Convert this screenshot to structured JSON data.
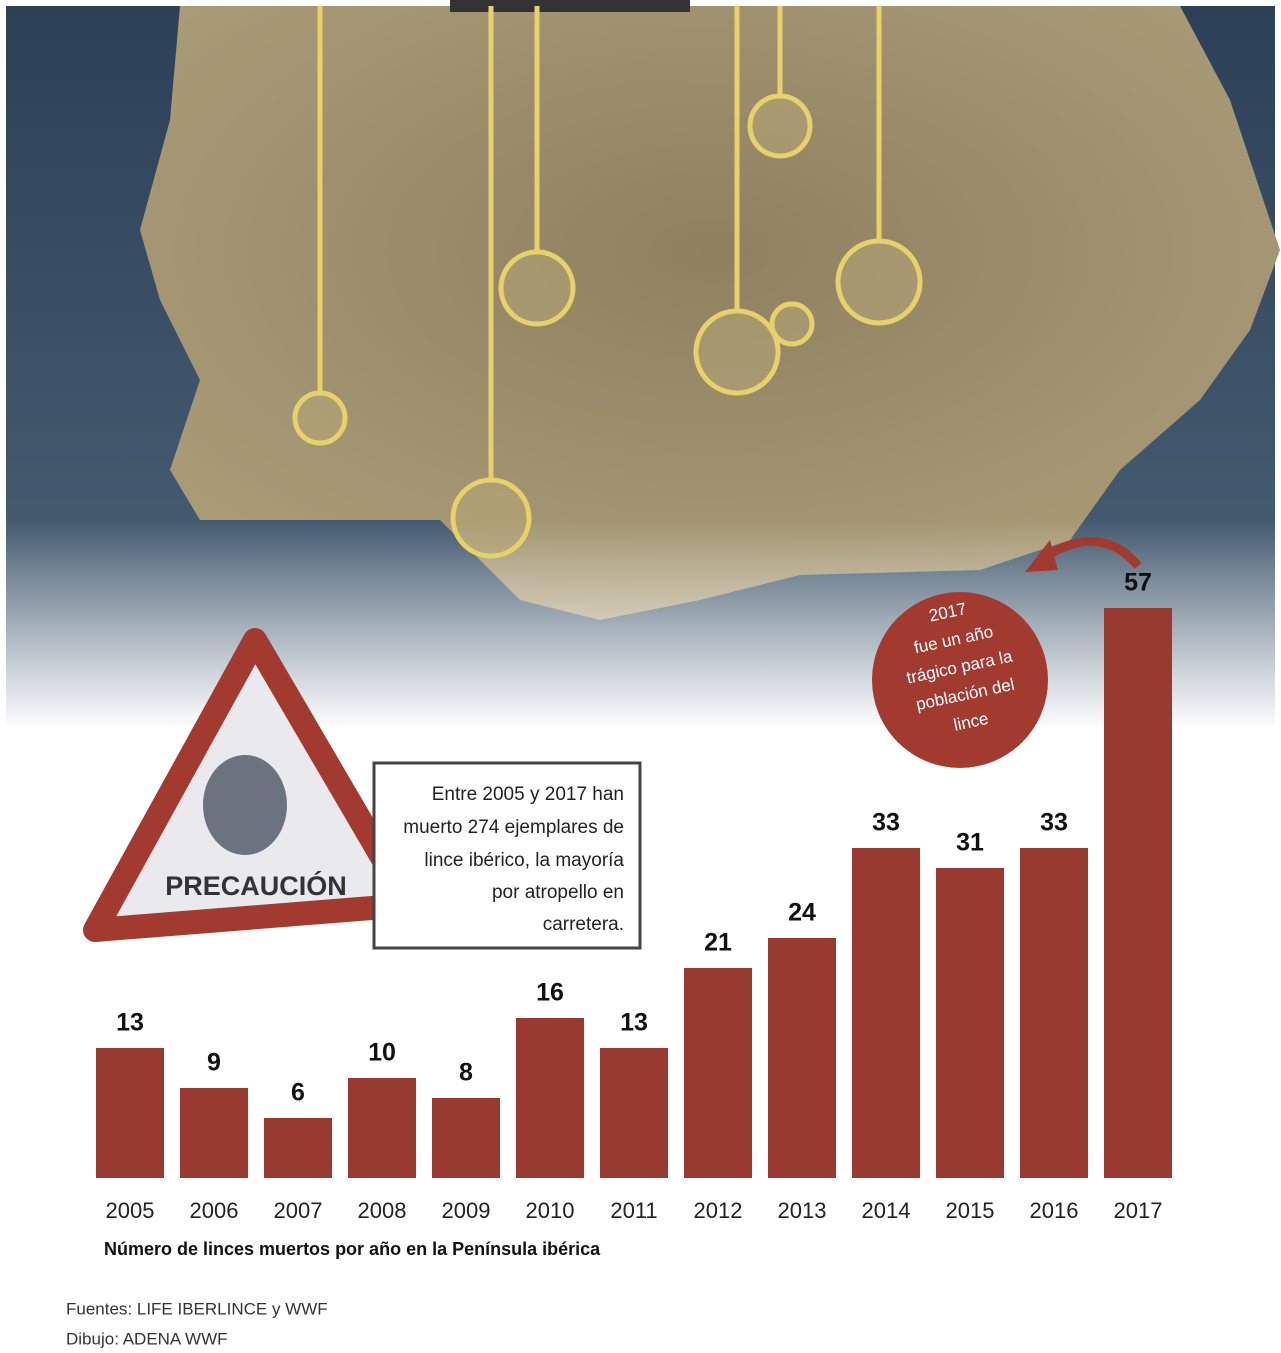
{
  "chart_data": {
    "type": "bar",
    "caption": "Número de linces muertos por año en la Península ibérica",
    "categories": [
      "2005",
      "2006",
      "2007",
      "2008",
      "2009",
      "2010",
      "2011",
      "2012",
      "2013",
      "2014",
      "2015",
      "2016",
      "2017"
    ],
    "values": [
      13,
      9,
      6,
      10,
      8,
      16,
      13,
      21,
      24,
      33,
      31,
      33,
      57
    ],
    "color": "#983a30"
  },
  "sign": {
    "label": "PRECAUCIÓN"
  },
  "info_box": {
    "lines": [
      "Entre 2005 y 2017 han",
      "muerto 274 ejemplares de",
      "lince ibérico, la mayoría",
      "por atropello en",
      "carretera."
    ]
  },
  "callout": {
    "lines": [
      "2017",
      "fue un año",
      "trágico para la",
      "población del",
      "lince"
    ]
  },
  "footer": {
    "sources": "Fuentes: LIFE IBERLINCE y WWF",
    "drawing": "Dibujo: ADENA WWF"
  }
}
